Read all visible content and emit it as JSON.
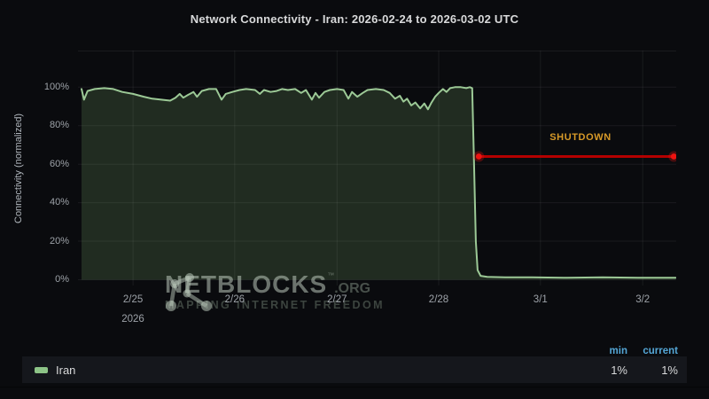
{
  "title": "Network Connectivity - Iran: 2026-02-24 to 2026-03-02 UTC",
  "watermark": {
    "brand": "NETBLOCKS",
    "tm": "™",
    "tld": ".ORG",
    "tagline": "MAPPING INTERNET FREEDOM"
  },
  "legend": {
    "min_header": "min",
    "current_header": "current",
    "series_label": "Iran",
    "min_value": "1%",
    "current_value": "1%",
    "swatch_color": "#8dc487"
  },
  "chart_data": {
    "type": "area",
    "title": "Network Connectivity - Iran: 2026-02-24 to 2026-03-02 UTC",
    "xlabel": "",
    "ylabel": "Connectivity (normalized)",
    "x_axis_year": "2026",
    "ylim": [
      -3,
      119
    ],
    "y_ticks": [
      0,
      20,
      40,
      60,
      80,
      100
    ],
    "y_tick_labels": [
      "0%",
      "20%",
      "40%",
      "60%",
      "80%",
      "100%"
    ],
    "x_unit": "fraction of visible time axis (approx 2026-02-24 11:00 to 2026-03-02 08:00 UTC)",
    "x_ticks": [
      {
        "f": 0.092,
        "label": "2/25"
      },
      {
        "f": 0.262,
        "label": "2/26"
      },
      {
        "f": 0.433,
        "label": "2/27"
      },
      {
        "f": 0.603,
        "label": "2/28"
      },
      {
        "f": 0.773,
        "label": "3/1"
      },
      {
        "f": 0.944,
        "label": "3/2"
      }
    ],
    "grid_on": true,
    "grid_color": "rgba(255,255,255,0.065)",
    "legend_position": "bottom",
    "series": [
      {
        "name": "Iran",
        "color": "#9cc996",
        "fill": "rgba(140,195,120,0.18)",
        "min": 1,
        "current": 1,
        "points": [
          [
            0.006,
            99
          ],
          [
            0.01,
            93.5
          ],
          [
            0.016,
            98
          ],
          [
            0.028,
            99
          ],
          [
            0.044,
            99.5
          ],
          [
            0.059,
            99
          ],
          [
            0.074,
            97.5
          ],
          [
            0.092,
            96.5
          ],
          [
            0.11,
            95
          ],
          [
            0.124,
            94
          ],
          [
            0.139,
            93.5
          ],
          [
            0.154,
            93
          ],
          [
            0.163,
            94.5
          ],
          [
            0.17,
            96.5
          ],
          [
            0.176,
            94.5
          ],
          [
            0.184,
            96
          ],
          [
            0.193,
            97.5
          ],
          [
            0.199,
            95
          ],
          [
            0.207,
            98
          ],
          [
            0.219,
            99
          ],
          [
            0.231,
            99
          ],
          [
            0.24,
            93.5
          ],
          [
            0.247,
            96.5
          ],
          [
            0.258,
            97.5
          ],
          [
            0.27,
            98.5
          ],
          [
            0.281,
            99
          ],
          [
            0.296,
            98.5
          ],
          [
            0.304,
            96.5
          ],
          [
            0.311,
            98.5
          ],
          [
            0.322,
            97.5
          ],
          [
            0.332,
            98
          ],
          [
            0.341,
            99
          ],
          [
            0.351,
            98.5
          ],
          [
            0.363,
            99
          ],
          [
            0.373,
            97
          ],
          [
            0.381,
            98.5
          ],
          [
            0.391,
            93.5
          ],
          [
            0.397,
            97
          ],
          [
            0.403,
            94.5
          ],
          [
            0.412,
            97.5
          ],
          [
            0.421,
            98.5
          ],
          [
            0.433,
            99
          ],
          [
            0.444,
            98.5
          ],
          [
            0.452,
            94
          ],
          [
            0.458,
            97.5
          ],
          [
            0.467,
            95
          ],
          [
            0.476,
            97
          ],
          [
            0.484,
            98.5
          ],
          [
            0.498,
            99
          ],
          [
            0.511,
            98.5
          ],
          [
            0.521,
            97
          ],
          [
            0.53,
            94
          ],
          [
            0.538,
            95.5
          ],
          [
            0.544,
            92.5
          ],
          [
            0.55,
            94
          ],
          [
            0.557,
            90.5
          ],
          [
            0.564,
            92
          ],
          [
            0.572,
            89
          ],
          [
            0.579,
            91.5
          ],
          [
            0.585,
            88.5
          ],
          [
            0.591,
            92
          ],
          [
            0.597,
            95
          ],
          [
            0.603,
            97
          ],
          [
            0.61,
            99
          ],
          [
            0.616,
            97.5
          ],
          [
            0.622,
            99.5
          ],
          [
            0.63,
            100
          ],
          [
            0.64,
            100
          ],
          [
            0.649,
            99.5
          ],
          [
            0.655,
            100
          ],
          [
            0.659,
            99.5
          ],
          [
            0.662,
            60
          ],
          [
            0.665,
            20
          ],
          [
            0.668,
            5
          ],
          [
            0.673,
            2
          ],
          [
            0.684,
            1.5
          ],
          [
            0.714,
            1.3
          ],
          [
            0.759,
            1.3
          ],
          [
            0.818,
            1
          ],
          [
            0.877,
            1.3
          ],
          [
            0.936,
            1
          ],
          [
            0.981,
            1
          ],
          [
            0.999,
            1
          ]
        ]
      }
    ],
    "annotation": {
      "label": "SHUTDOWN",
      "label_color": "#d89a28",
      "line_color": "#b40000",
      "dot_color": "#ec1310",
      "x_start": 0.67,
      "x_end": 0.996,
      "y": 64,
      "label_x": 0.84,
      "label_y": 72.5
    }
  }
}
